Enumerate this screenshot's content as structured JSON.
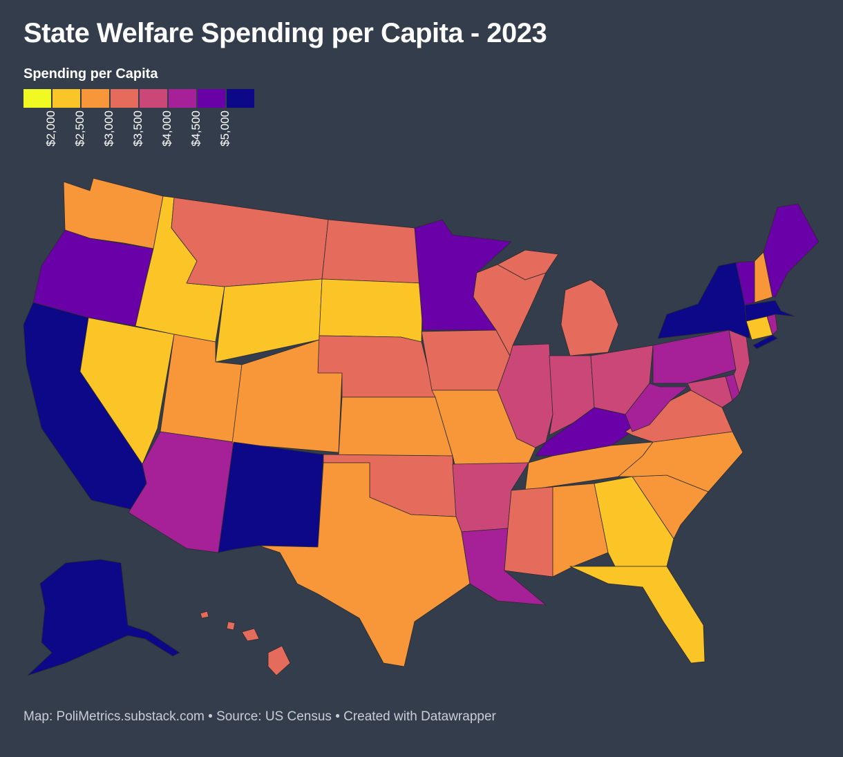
{
  "title": "State Welfare Spending per Capita - 2023",
  "legend": {
    "title": "Spending per Capita",
    "colors": [
      "#f0f921",
      "#fbc427",
      "#f7973a",
      "#e56b5d",
      "#cb4778",
      "#a62098",
      "#6a00a8",
      "#0d0887"
    ],
    "ticks": [
      "$2,000",
      "$2,500",
      "$3,000",
      "$3,500",
      "$4,000",
      "$4,500",
      "$5,000"
    ]
  },
  "footer": "Map: PoliMetrics.substack.com • Source: US Census • Created with Datawrapper",
  "map_data": {
    "WA": 2500,
    "OR": 4500,
    "CA": 5000,
    "NV": 2000,
    "ID": 2000,
    "MT": 3000,
    "WY": 2000,
    "UT": 2500,
    "AZ": 4000,
    "CO": 2500,
    "NM": 5000,
    "ND": 3000,
    "SD": 2000,
    "NE": 3000,
    "KS": 2500,
    "OK": 3000,
    "TX": 2500,
    "MN": 4500,
    "IA": 3000,
    "MO": 2500,
    "AR": 3500,
    "LA": 4000,
    "WI": 3000,
    "IL": 3500,
    "MI": 3000,
    "IN": 3500,
    "OH": 3500,
    "KY": 4500,
    "TN": 2500,
    "MS": 3000,
    "AL": 2500,
    "GA": 2000,
    "FL": 2000,
    "SC": 2500,
    "NC": 2500,
    "VA": 3000,
    "WV": 4000,
    "PA": 4000,
    "NY": 5000,
    "VT": 4500,
    "NH": 2500,
    "ME": 4500,
    "MA": 5000,
    "RI": 4000,
    "CT": 2000,
    "NJ": 3500,
    "DE": 4000,
    "MD": 3500,
    "AK": 5000,
    "HI": 3000
  }
}
